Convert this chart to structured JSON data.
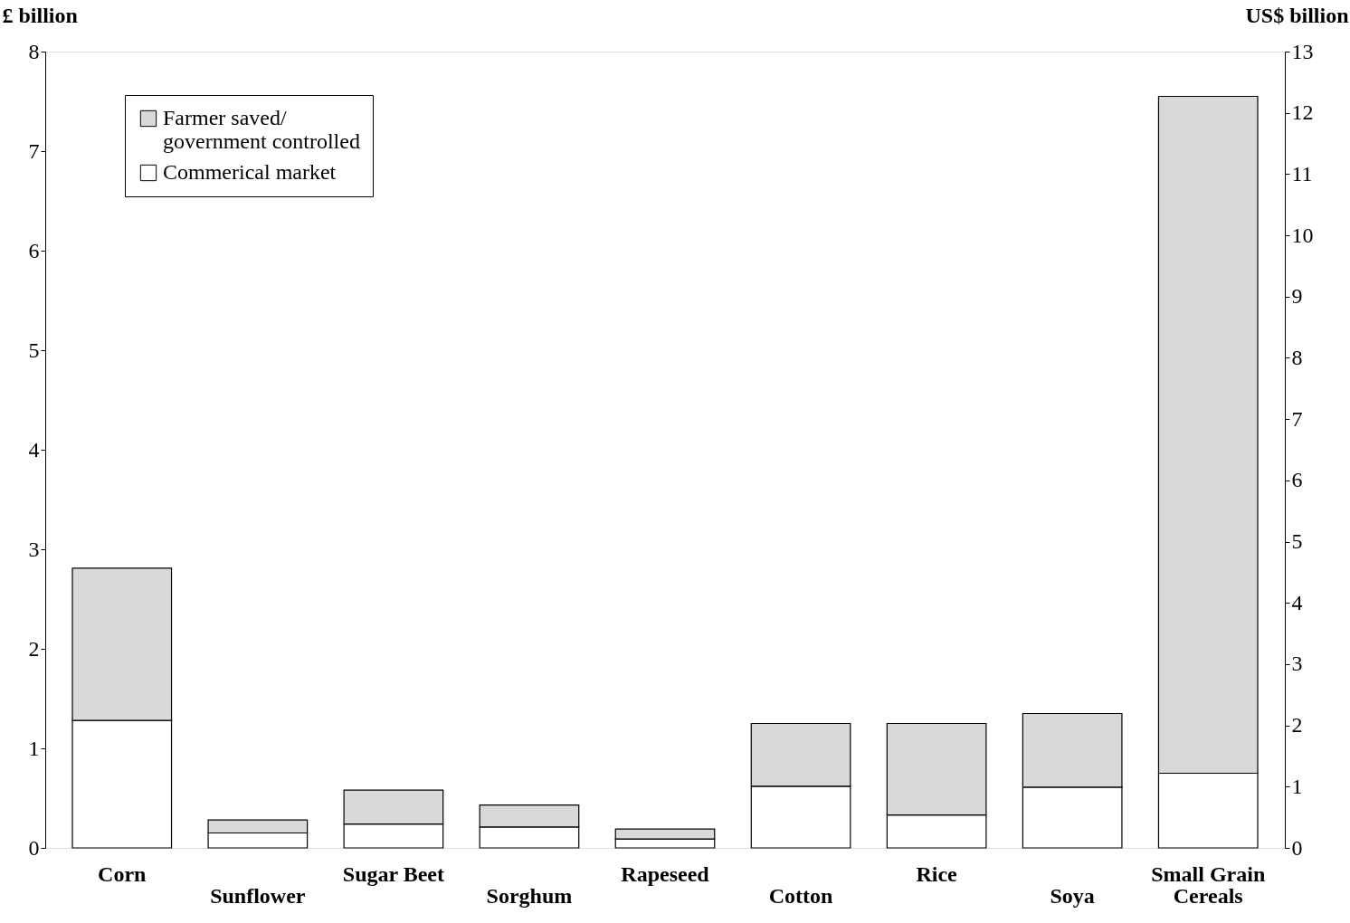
{
  "chart_data": {
    "type": "bar",
    "stacked": true,
    "ylabel": "£ billion",
    "y2label": "US$ billion",
    "categories": [
      "Corn",
      "Sunflower",
      "Sugar Beet",
      "Sorghum",
      "Rapeseed",
      "Cotton",
      "Rice",
      "Soya",
      "Small Grain Cereals"
    ],
    "series": [
      {
        "name": "Commerical market",
        "color": "#ffffff",
        "values": [
          1.28,
          0.15,
          0.24,
          0.21,
          0.09,
          0.62,
          0.33,
          0.61,
          0.75
        ]
      },
      {
        "name": "Farmer saved/ government controlled",
        "color": "#d9d9d9",
        "values": [
          1.53,
          0.13,
          0.34,
          0.22,
          0.1,
          0.63,
          0.92,
          0.74,
          6.8
        ]
      }
    ],
    "ylim": [
      0,
      8
    ],
    "yticks": [
      0,
      1,
      2,
      3,
      4,
      5,
      6,
      7,
      8
    ],
    "y2lim": [
      0,
      13
    ],
    "y2ticks": [
      0,
      1,
      2,
      3,
      4,
      5,
      6,
      7,
      8,
      9,
      10,
      11,
      12,
      13
    ],
    "grid": false,
    "legend": "top left"
  }
}
